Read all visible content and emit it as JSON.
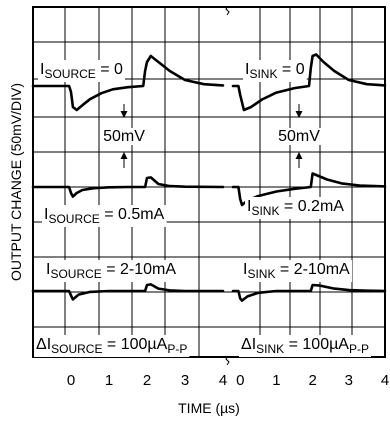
{
  "chart_data": {
    "type": "line",
    "xlabel": "TIME (µs)",
    "ylabel": "OUTPUT CHANGE (50mV/DIV)",
    "x_ticks_left": [
      "0",
      "1",
      "2",
      "3",
      "4"
    ],
    "x_ticks_right": [
      "0",
      "1",
      "2",
      "3",
      "4"
    ],
    "xlim_left": [
      -1,
      4
    ],
    "xlim_right": [
      -0.2,
      4
    ],
    "scale_annotation": "50mV",
    "panels": [
      {
        "name": "source",
        "bottom_label": {
          "prefix": "ΔI",
          "sub": "SOURCE",
          "suffix": " = 100µA",
          "sub2": "P-P"
        },
        "traces": [
          {
            "label": {
              "prefix": "I",
              "sub": "SOURCE",
              "suffix": " = 0"
            },
            "x": [
              -1,
              -0.05,
              0,
              0.05,
              0.15,
              0.3,
              0.5,
              0.8,
              1.1,
              1.5,
              1.9,
              1.95,
              2.0,
              2.1,
              2.3,
              2.6,
              3.0,
              3.5,
              4.0
            ],
            "y": [
              0,
              0,
              -0.2,
              -0.7,
              -0.8,
              -0.64,
              -0.44,
              -0.24,
              -0.11,
              -0.04,
              0,
              0.5,
              0.8,
              1.0,
              0.8,
              0.5,
              0.2,
              0.06,
              0.02
            ]
          },
          {
            "label": {
              "prefix": "I",
              "sub": "SOURCE",
              "suffix": " = 0.5mA"
            },
            "x": [
              -1,
              -0.05,
              0,
              0.05,
              0.15,
              0.3,
              0.6,
              1.0,
              1.5,
              1.95,
              2.0,
              2.1,
              2.3,
              2.6,
              3.0,
              4.0
            ],
            "y": [
              0,
              0,
              -0.2,
              -0.32,
              -0.2,
              -0.1,
              -0.04,
              -0.01,
              0,
              0,
              0.3,
              0.32,
              0.1,
              0.03,
              0.01,
              0
            ]
          },
          {
            "label": {
              "prefix": "I",
              "sub": "SOURCE",
              "suffix": " = 2-10mA"
            },
            "x": [
              -1,
              -0.05,
              0,
              0.05,
              0.2,
              0.5,
              1.0,
              1.95,
              2.0,
              2.1,
              2.3,
              2.6,
              3.0,
              4.0
            ],
            "y": [
              0,
              0,
              -0.15,
              -0.28,
              -0.12,
              -0.03,
              0,
              0,
              0.2,
              0.22,
              0.08,
              0.02,
              0,
              0
            ]
          }
        ]
      },
      {
        "name": "sink",
        "bottom_label": {
          "prefix": "ΔI",
          "sub": "SINK",
          "suffix": " = 100µA",
          "sub2": "P-P"
        },
        "traces": [
          {
            "label": {
              "prefix": "I",
              "sub": "SINK",
              "suffix": " = 0"
            },
            "x": [
              -0.2,
              -0.05,
              0,
              0.1,
              0.3,
              0.6,
              1.0,
              1.5,
              1.9,
              1.95,
              2.0,
              2.1,
              2.3,
              2.6,
              3.0,
              3.5,
              4.0
            ],
            "y": [
              0,
              0,
              -0.3,
              -0.8,
              -0.7,
              -0.45,
              -0.22,
              -0.07,
              0,
              0.6,
              1.0,
              1.05,
              0.8,
              0.5,
              0.2,
              0.06,
              0.02
            ]
          },
          {
            "label": {
              "prefix": "I",
              "sub": "SINK",
              "suffix": " = 0.2mA"
            },
            "x": [
              -0.2,
              -0.05,
              0,
              0.05,
              0.2,
              0.5,
              1.0,
              1.5,
              1.95,
              2.0,
              2.1,
              2.4,
              2.8,
              3.3,
              4.0
            ],
            "y": [
              0,
              0,
              -0.4,
              -0.6,
              -0.45,
              -0.3,
              -0.15,
              -0.06,
              0,
              0.45,
              0.4,
              0.25,
              0.12,
              0.05,
              0.02
            ]
          },
          {
            "label": {
              "prefix": "I",
              "sub": "SINK",
              "suffix": " = 2-10mA"
            },
            "x": [
              -0.2,
              -0.05,
              0,
              0.05,
              0.2,
              0.5,
              1.0,
              1.95,
              2.0,
              2.2,
              2.6,
              3.0,
              3.5,
              4.0
            ],
            "y": [
              0,
              0,
              -0.25,
              -0.32,
              -0.18,
              -0.06,
              0,
              0,
              0.2,
              0.18,
              0.08,
              0.03,
              0.01,
              0
            ]
          }
        ]
      }
    ]
  }
}
